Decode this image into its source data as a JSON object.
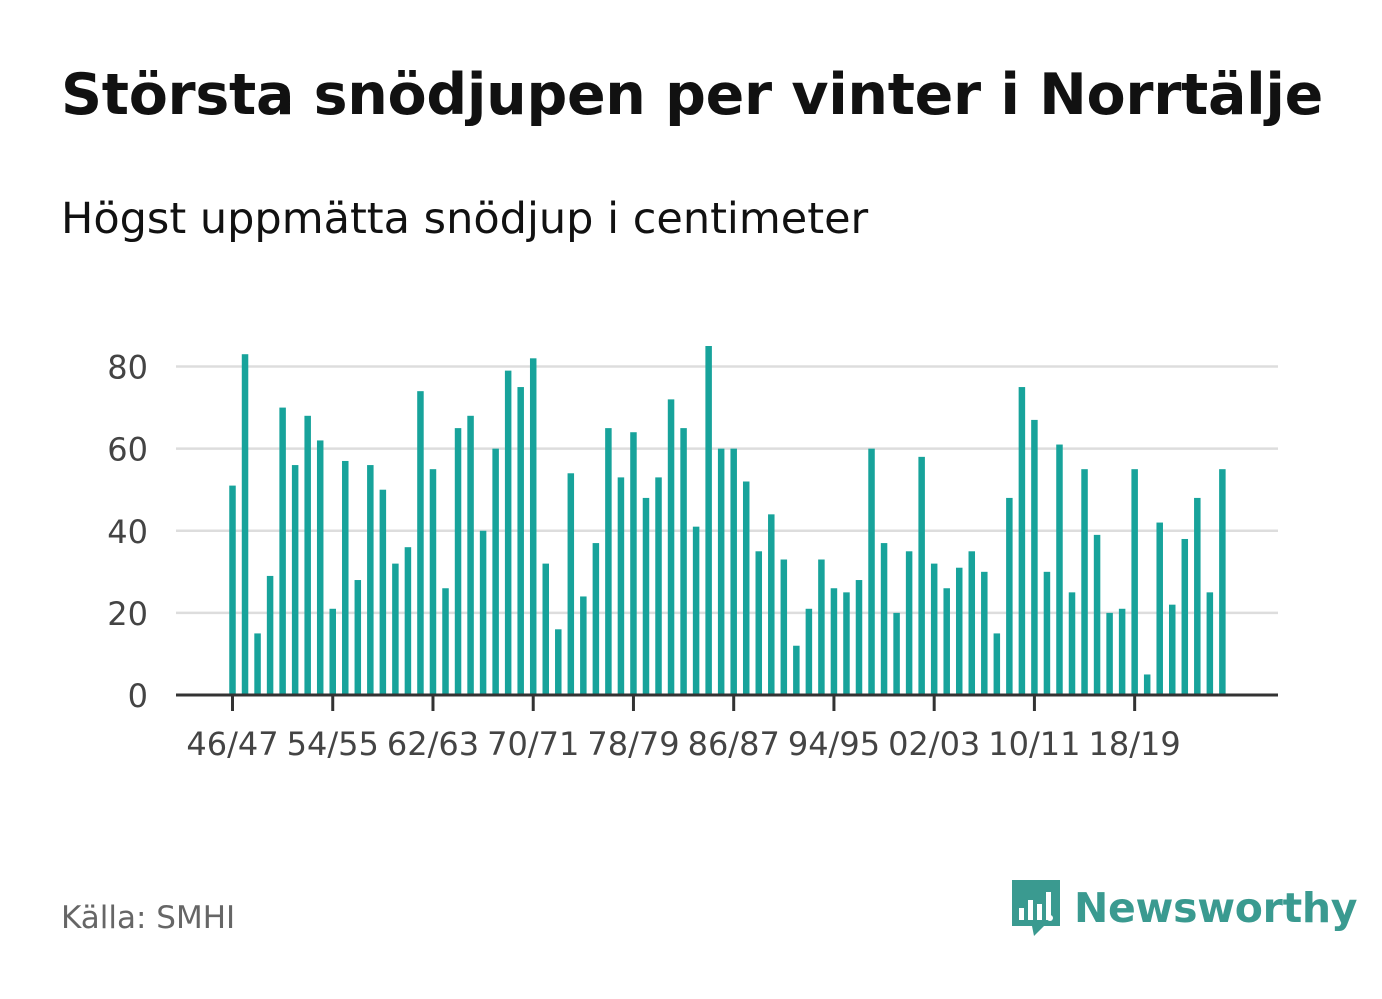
{
  "title": "Största snödjupen per vinter i Norrtälje",
  "subtitle": "Högst uppmätta snödjup i centimeter",
  "source": "Källa: SMHI",
  "brand": {
    "name": "Newsworthy",
    "color": "#3a9a90",
    "icon": "bar-chart-speech-bubble-icon"
  },
  "colors": {
    "bar": "#17a39b",
    "grid": "#dddddd",
    "axis": "#333333",
    "tick_text": "#444444"
  },
  "chart_data": {
    "type": "bar",
    "title": "Största snödjupen per vinter i Norrtälje",
    "ylabel": "Högst uppmätta snödjup i centimeter",
    "ylim": [
      0,
      85
    ],
    "yticks": [
      0,
      20,
      40,
      60,
      80
    ],
    "grid": true,
    "x_tick_labels": [
      "46/47",
      "54/55",
      "62/63",
      "70/71",
      "78/79",
      "86/87",
      "94/95",
      "02/03",
      "10/11",
      "18/19"
    ],
    "x_tick_every": 8,
    "values": [
      51,
      83,
      15,
      29,
      70,
      56,
      68,
      62,
      21,
      57,
      28,
      56,
      50,
      32,
      36,
      74,
      55,
      26,
      65,
      68,
      40,
      60,
      79,
      75,
      82,
      32,
      16,
      54,
      24,
      37,
      65,
      53,
      64,
      48,
      53,
      72,
      65,
      41,
      85,
      60,
      60,
      52,
      35,
      44,
      33,
      12,
      21,
      33,
      26,
      25,
      28,
      60,
      37,
      20,
      35,
      58,
      32,
      26,
      31,
      35,
      30,
      15,
      48,
      75,
      67,
      30,
      61,
      25,
      55,
      39,
      20,
      21,
      55,
      5,
      42,
      22,
      38,
      48,
      25,
      55
    ]
  }
}
